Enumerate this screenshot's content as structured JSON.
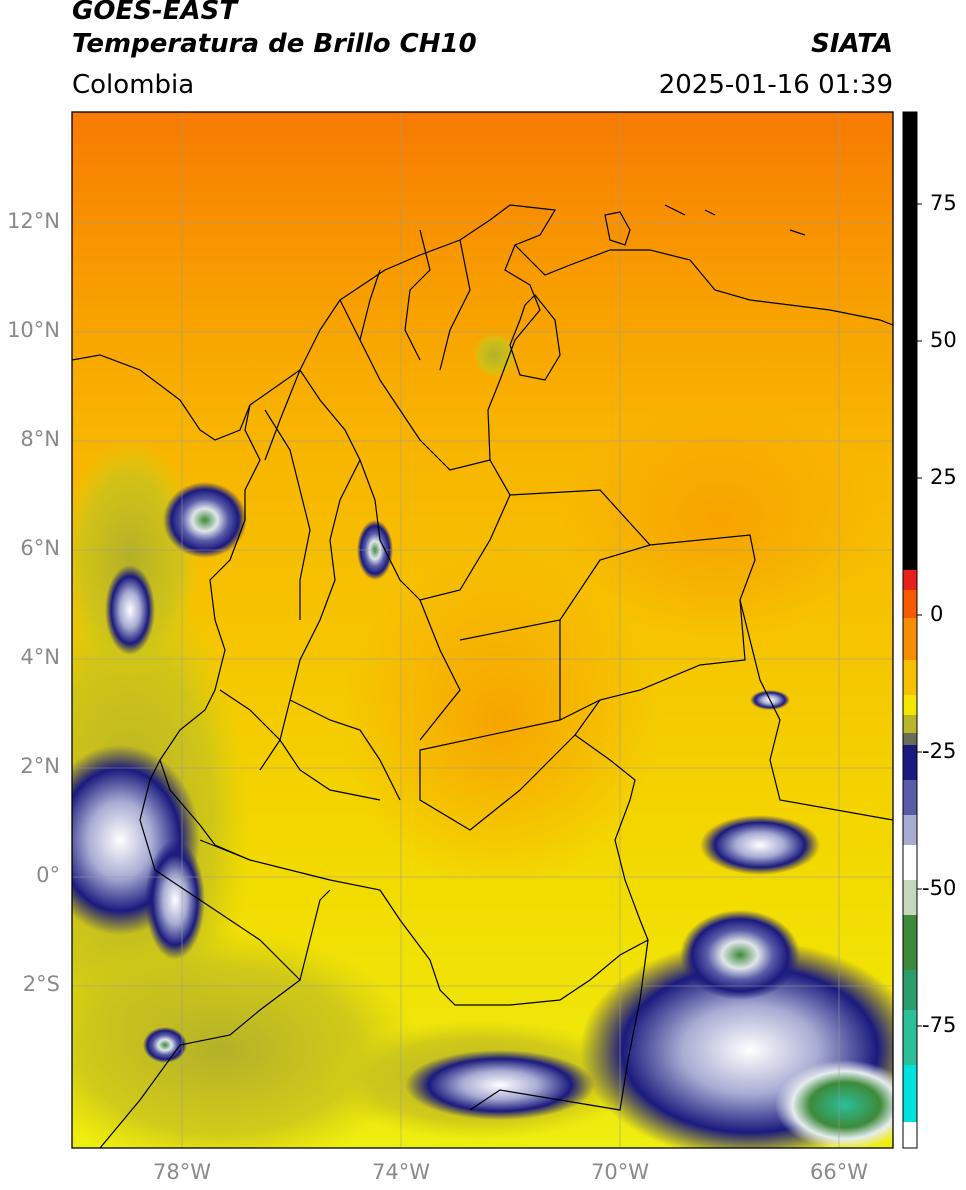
{
  "header": {
    "satellite": "GOES-EAST",
    "product": "Temperatura de Brillo CH10",
    "agency": "SIATA",
    "region": "Colombia",
    "datetime": "2025-01-16 01:39"
  },
  "map": {
    "lat_ticks": [
      "12°N",
      "10°N",
      "8°N",
      "6°N",
      "4°N",
      "2°N",
      "0°",
      "2°S"
    ],
    "lon_ticks": [
      "78°W",
      "74°W",
      "70°W",
      "66°W"
    ],
    "gridlines": true,
    "extent": {
      "lon_min": -80.0,
      "lon_max": -65.0,
      "lat_min": -5.2,
      "lat_max": 14.0
    }
  },
  "colorbar": {
    "labels": [
      "75",
      "50",
      "25",
      "0",
      "-25",
      "-50",
      "-75"
    ],
    "units_hint": "°C",
    "colors": {
      "saturated_warm": "#000000",
      "red": "#e8201b",
      "orange": "#f78d00",
      "yellow": "#f5e600",
      "olive": "#b9b629",
      "navy": "#1b1a7e",
      "white": "#ffffff",
      "green": "#3d8a3a",
      "cyan": "#00e1dc"
    }
  }
}
